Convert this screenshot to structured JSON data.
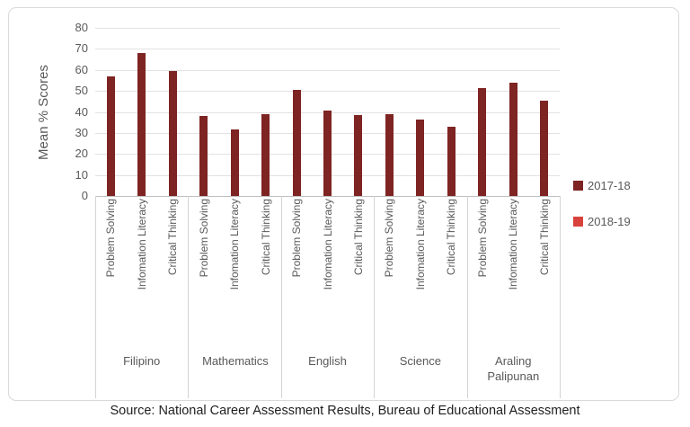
{
  "chart_data": {
    "type": "bar",
    "title": "",
    "ylabel": "Mean % Scores",
    "ylim": [
      0,
      80
    ],
    "ytick_step": 10,
    "grid": true,
    "legend_position": "right",
    "subcategories": [
      "Problem Solving",
      "Infomation Literacy",
      "Critical Thinking"
    ],
    "groups": [
      {
        "label": "Filipino",
        "values": [
          57,
          68,
          59.5
        ]
      },
      {
        "label": "Mathematics",
        "values": [
          38,
          31.5,
          39
        ]
      },
      {
        "label": "English",
        "values": [
          50.5,
          40.5,
          38.5
        ]
      },
      {
        "label": "Science",
        "values": [
          39,
          36.5,
          33
        ]
      },
      {
        "label": "Araling Palipunan",
        "values": [
          51.5,
          54,
          45.5
        ]
      }
    ],
    "series": [
      {
        "name": "2017-18",
        "color": "#7e2422",
        "values_key": "values"
      },
      {
        "name": "2018-19",
        "color": "#d9423c",
        "values_key": null
      }
    ]
  },
  "colors": {
    "bar": "#7e2422",
    "legend_second": "#d9423c",
    "gridline": "#e2e2e2",
    "axis_line": "#bfbfbf",
    "axis_text": "#595959",
    "source_text": "#1f1f1f",
    "frame_border": "#d9d9d9"
  },
  "source_note": "Source: National Career Assessment Results, Bureau of Educational Assessment"
}
